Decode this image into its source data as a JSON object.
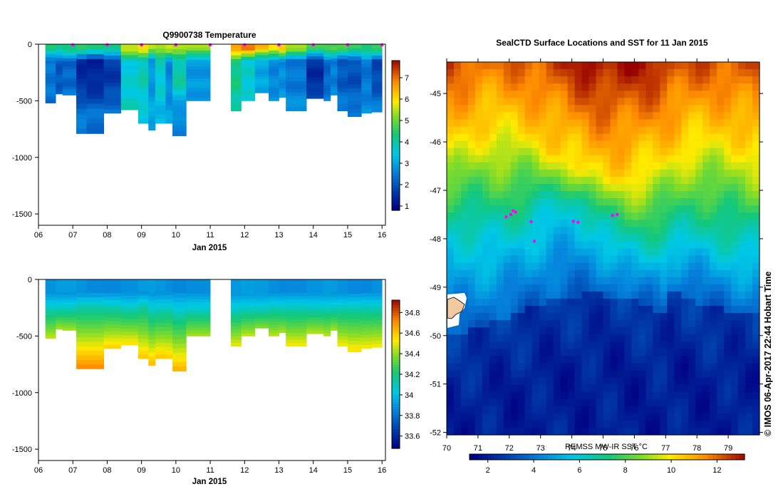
{
  "chart_data": [
    {
      "type": "heatmap",
      "name": "temperature-section",
      "title": "Q9900738  Temperature",
      "xlabel": "Jan 2015",
      "x_ticks": [
        "06",
        "07",
        "08",
        "09",
        "10",
        "11",
        "12",
        "13",
        "14",
        "15",
        "16"
      ],
      "y_ticks": [
        "0",
        "-500",
        "-1000",
        "-1500"
      ],
      "xlim": [
        6,
        16.1
      ],
      "ylim": [
        -1600,
        0
      ],
      "colorbar": {
        "ticks": [
          "1",
          "2",
          "3",
          "4",
          "5",
          "6",
          "7"
        ],
        "range": [
          0.8,
          7.8
        ]
      },
      "markers_days": [
        7,
        8,
        9,
        10,
        11,
        12,
        13,
        14,
        15,
        16
      ],
      "profiles": [
        {
          "start": 6.2,
          "end": 6.5,
          "depth": 520,
          "surface": 4.2,
          "mid": 2.4,
          "deep": 2.3
        },
        {
          "start": 6.5,
          "end": 6.7,
          "depth": 440,
          "surface": 4.2,
          "mid": 2.0,
          "deep": 2.6
        },
        {
          "start": 6.7,
          "end": 7.1,
          "depth": 450,
          "surface": 4.3,
          "mid": 2.2,
          "deep": 2.7
        },
        {
          "start": 7.1,
          "end": 7.4,
          "depth": 790,
          "surface": 4.4,
          "mid": 1.4,
          "deep": 2.4
        },
        {
          "start": 7.4,
          "end": 7.9,
          "depth": 790,
          "surface": 4.2,
          "mid": 1.3,
          "deep": 2.3
        },
        {
          "start": 7.9,
          "end": 8.4,
          "depth": 610,
          "surface": 4.3,
          "mid": 1.6,
          "deep": 2.4
        },
        {
          "start": 8.4,
          "end": 8.9,
          "depth": 580,
          "surface": 5.6,
          "mid": 3.5,
          "deep": 3.8
        },
        {
          "start": 8.9,
          "end": 9.2,
          "depth": 700,
          "surface": 5.8,
          "mid": 3.8,
          "deep": 3.4
        },
        {
          "start": 9.2,
          "end": 9.4,
          "depth": 760,
          "surface": 5.4,
          "mid": 2.8,
          "deep": 3.0
        },
        {
          "start": 9.4,
          "end": 9.7,
          "depth": 700,
          "surface": 5.5,
          "mid": 3.6,
          "deep": 3.2
        },
        {
          "start": 9.7,
          "end": 9.9,
          "depth": 700,
          "surface": 5.6,
          "mid": 2.6,
          "deep": 2.9
        },
        {
          "start": 9.9,
          "end": 10.3,
          "depth": 810,
          "surface": 5.2,
          "mid": 3.9,
          "deep": 2.6
        },
        {
          "start": 10.3,
          "end": 11.0,
          "depth": 500,
          "surface": 5.4,
          "mid": 2.8,
          "deep": 2.9
        },
        {
          "start": 11.6,
          "end": 11.9,
          "depth": 590,
          "surface": 6.7,
          "mid": 4.2,
          "deep": 3.8
        },
        {
          "start": 11.9,
          "end": 12.3,
          "depth": 500,
          "surface": 6.8,
          "mid": 3.6,
          "deep": 3.3
        },
        {
          "start": 12.3,
          "end": 12.7,
          "depth": 430,
          "surface": 6.3,
          "mid": 3.0,
          "deep": 3.1
        },
        {
          "start": 12.7,
          "end": 13.0,
          "depth": 500,
          "surface": 6.0,
          "mid": 2.6,
          "deep": 2.9
        },
        {
          "start": 13.0,
          "end": 13.2,
          "depth": 470,
          "surface": 6.2,
          "mid": 2.7,
          "deep": 2.9
        },
        {
          "start": 13.2,
          "end": 13.8,
          "depth": 590,
          "surface": 5.2,
          "mid": 2.4,
          "deep": 2.8
        },
        {
          "start": 13.8,
          "end": 14.3,
          "depth": 480,
          "surface": 4.6,
          "mid": 1.4,
          "deep": 2.5
        },
        {
          "start": 14.3,
          "end": 14.5,
          "depth": 500,
          "surface": 4.8,
          "mid": 2.2,
          "deep": 2.7
        },
        {
          "start": 14.5,
          "end": 14.7,
          "depth": 450,
          "surface": 4.7,
          "mid": 2.5,
          "deep": 2.8
        },
        {
          "start": 14.7,
          "end": 15.0,
          "depth": 590,
          "surface": 4.6,
          "mid": 2.0,
          "deep": 2.6
        },
        {
          "start": 15.0,
          "end": 15.4,
          "depth": 640,
          "surface": 4.6,
          "mid": 1.9,
          "deep": 2.5
        },
        {
          "start": 15.4,
          "end": 15.7,
          "depth": 610,
          "surface": 4.5,
          "mid": 2.4,
          "deep": 2.7
        },
        {
          "start": 15.7,
          "end": 16.0,
          "depth": 600,
          "surface": 4.5,
          "mid": 1.8,
          "deep": 2.6
        }
      ]
    },
    {
      "type": "heatmap",
      "name": "salinity-section",
      "title": "",
      "xlabel": "Jan 2015",
      "x_ticks": [
        "06",
        "07",
        "08",
        "09",
        "10",
        "11",
        "12",
        "13",
        "14",
        "15",
        "16"
      ],
      "y_ticks": [
        "0",
        "-500",
        "-1000",
        "-1500"
      ],
      "xlim": [
        6,
        16.1
      ],
      "ylim": [
        -1600,
        0
      ],
      "colorbar": {
        "ticks": [
          "33.6",
          "33.8",
          "34",
          "34.2",
          "34.4",
          "34.6",
          "34.8"
        ],
        "range": [
          33.48,
          34.92
        ]
      },
      "profiles": [
        {
          "start": 6.2,
          "end": 6.5,
          "depth": 520,
          "halocline": 270,
          "deep": 34.45
        },
        {
          "start": 6.5,
          "end": 6.7,
          "depth": 440,
          "halocline": 270,
          "deep": 34.42
        },
        {
          "start": 6.7,
          "end": 7.1,
          "depth": 450,
          "halocline": 270,
          "deep": 34.42
        },
        {
          "start": 7.1,
          "end": 7.4,
          "depth": 790,
          "halocline": 240,
          "deep": 34.72
        },
        {
          "start": 7.4,
          "end": 7.9,
          "depth": 790,
          "halocline": 240,
          "deep": 34.72
        },
        {
          "start": 7.9,
          "end": 8.4,
          "depth": 610,
          "halocline": 250,
          "deep": 34.58
        },
        {
          "start": 8.4,
          "end": 8.9,
          "depth": 580,
          "halocline": 270,
          "deep": 34.55
        },
        {
          "start": 8.9,
          "end": 9.2,
          "depth": 700,
          "halocline": 230,
          "deep": 34.6
        },
        {
          "start": 9.2,
          "end": 9.4,
          "depth": 760,
          "halocline": 290,
          "deep": 34.62
        },
        {
          "start": 9.4,
          "end": 9.7,
          "depth": 700,
          "halocline": 280,
          "deep": 34.6
        },
        {
          "start": 9.7,
          "end": 9.9,
          "depth": 700,
          "halocline": 270,
          "deep": 34.58
        },
        {
          "start": 9.9,
          "end": 10.3,
          "depth": 810,
          "halocline": 310,
          "deep": 34.64
        },
        {
          "start": 10.3,
          "end": 11.0,
          "depth": 500,
          "halocline": 290,
          "deep": 34.42
        },
        {
          "start": 11.6,
          "end": 11.9,
          "depth": 590,
          "halocline": 290,
          "deep": 34.5
        },
        {
          "start": 11.9,
          "end": 12.3,
          "depth": 500,
          "halocline": 280,
          "deep": 34.45
        },
        {
          "start": 12.3,
          "end": 12.7,
          "depth": 430,
          "halocline": 280,
          "deep": 34.38
        },
        {
          "start": 12.7,
          "end": 13.0,
          "depth": 500,
          "halocline": 260,
          "deep": 34.44
        },
        {
          "start": 13.0,
          "end": 13.2,
          "depth": 470,
          "halocline": 270,
          "deep": 34.42
        },
        {
          "start": 13.2,
          "end": 13.8,
          "depth": 590,
          "halocline": 260,
          "deep": 34.52
        },
        {
          "start": 13.8,
          "end": 14.3,
          "depth": 480,
          "halocline": 270,
          "deep": 34.44
        },
        {
          "start": 14.3,
          "end": 14.5,
          "depth": 500,
          "halocline": 270,
          "deep": 34.44
        },
        {
          "start": 14.5,
          "end": 14.7,
          "depth": 450,
          "halocline": 270,
          "deep": 34.42
        },
        {
          "start": 14.7,
          "end": 15.0,
          "depth": 590,
          "halocline": 260,
          "deep": 34.52
        },
        {
          "start": 15.0,
          "end": 15.4,
          "depth": 640,
          "halocline": 260,
          "deep": 34.55
        },
        {
          "start": 15.4,
          "end": 15.7,
          "depth": 610,
          "halocline": 260,
          "deep": 34.52
        },
        {
          "start": 15.7,
          "end": 16.0,
          "depth": 600,
          "halocline": 260,
          "deep": 34.52
        }
      ]
    },
    {
      "type": "heatmap",
      "name": "sst-map",
      "title": "SealCTD Surface Locations and SST for 11 Jan 2015",
      "xlabel": "",
      "x_ticks": [
        "70",
        "71",
        "72",
        "73",
        "74",
        "75",
        "76",
        "77",
        "78",
        "79"
      ],
      "y_ticks": [
        "-45",
        "-46",
        "-47",
        "-48",
        "-49",
        "-50",
        "-51",
        "-52"
      ],
      "xlim": [
        70,
        80
      ],
      "ylim": [
        -52.05,
        -44.35
      ],
      "colorbar_label": "REMSS MW-IR SST °C",
      "colorbar": {
        "ticks": [
          "2",
          "4",
          "6",
          "8",
          "10",
          "12"
        ],
        "range": [
          1.2,
          13.2
        ]
      },
      "credit": "© IMOS 06-Apr-2017 22:44 Hobart Time",
      "surface_locations": [
        {
          "lon": 71.9,
          "lat": -47.55
        },
        {
          "lon": 72.05,
          "lat": -47.5
        },
        {
          "lon": 72.12,
          "lat": -47.42
        },
        {
          "lon": 72.2,
          "lat": -47.45
        },
        {
          "lon": 72.7,
          "lat": -47.65
        },
        {
          "lon": 72.8,
          "lat": -48.05
        },
        {
          "lon": 74.05,
          "lat": -47.64
        },
        {
          "lon": 74.2,
          "lat": -47.66
        },
        {
          "lon": 75.3,
          "lat": -47.52
        },
        {
          "lon": 75.45,
          "lat": -47.5
        }
      ]
    }
  ]
}
